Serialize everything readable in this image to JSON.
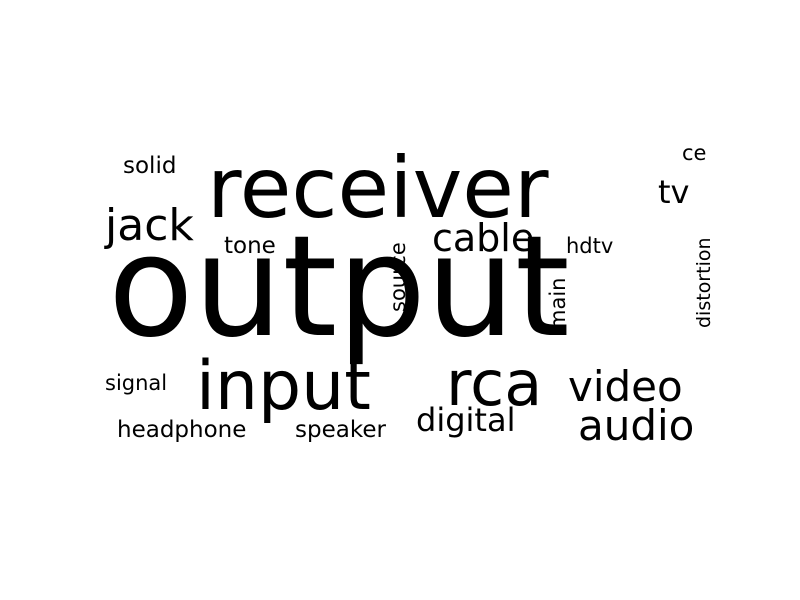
{
  "word_cloud": {
    "text_color": "#000000",
    "background_color": "#ffffff",
    "words": {
      "output": "output",
      "receiver": "receiver",
      "input": "input",
      "rca": "rca",
      "video": "video",
      "audio": "audio",
      "jack": "jack",
      "cable": "cable",
      "digital": "digital",
      "tv": "tv",
      "solid": "solid",
      "tone": "tone",
      "hdtv": "hdtv",
      "ce": "ce",
      "signal": "signal",
      "headphone": "headphone",
      "speaker": "speaker",
      "source": "source",
      "main": "main",
      "distortion": "distortion"
    }
  }
}
